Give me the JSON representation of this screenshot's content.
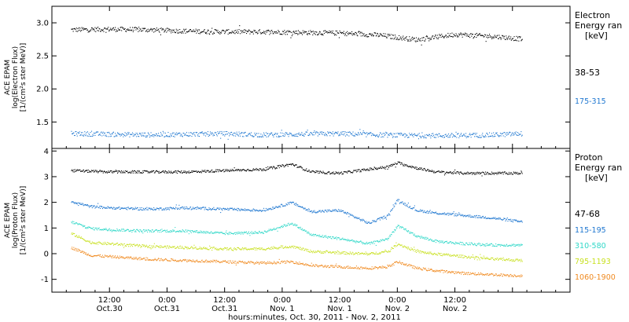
{
  "x_title": "hours:minutes, Oct. 30, 2011 - Nov. 2, 2011",
  "x_ticks": [
    {
      "t": "12:00",
      "d": "Oct.30"
    },
    {
      "t": "0:00",
      "d": "Oct.31"
    },
    {
      "t": "12:00",
      "d": "Oct.31"
    },
    {
      "t": "0:00",
      "d": "Nov. 1"
    },
    {
      "t": "12:00",
      "d": "Nov. 1"
    },
    {
      "t": "0:00",
      "d": "Nov. 2"
    },
    {
      "t": "12:00",
      "d": "Nov. 2"
    }
  ],
  "chart_data": [
    {
      "type": "scatter",
      "ylabel": [
        "ACE EPAM",
        "log(Electron Flux)",
        "[1/(cm²s ster MeV)]"
      ],
      "ylim": [
        1.1,
        3.25
      ],
      "yticks": [
        "1.5",
        "2.0",
        "2.5",
        "3.0"
      ],
      "ytick_values": [
        1.5,
        2.0,
        2.5,
        3.0
      ],
      "legend_title": [
        "Electron",
        "Energy ran",
        "[keV]"
      ],
      "series": [
        {
          "name": "38-53",
          "color": "#000000",
          "hours": [
            4,
            12,
            20,
            28,
            36,
            44,
            52,
            60,
            68,
            76,
            84,
            92,
            98
          ],
          "values": [
            2.9,
            2.91,
            2.9,
            2.88,
            2.87,
            2.87,
            2.86,
            2.85,
            2.82,
            2.75,
            2.83,
            2.8,
            2.76
          ]
        },
        {
          "name": "175-315",
          "color": "#1f77d0",
          "hours": [
            4,
            12,
            20,
            28,
            36,
            44,
            52,
            60,
            68,
            76,
            84,
            92,
            98
          ],
          "values": [
            1.33,
            1.32,
            1.31,
            1.32,
            1.33,
            1.31,
            1.32,
            1.33,
            1.31,
            1.3,
            1.3,
            1.31,
            1.33
          ]
        }
      ]
    },
    {
      "type": "scatter",
      "ylabel": [
        "ACE EPAM",
        "log(Proton Flux)",
        "[1/(cm²s ster MeV)]"
      ],
      "ylim": [
        -1.5,
        4.1
      ],
      "yticks": [
        "-1",
        "0",
        "1",
        "2",
        "3",
        "4"
      ],
      "ytick_values": [
        -1,
        0,
        1,
        2,
        3,
        4
      ],
      "legend_title": [
        "Proton",
        "Energy ran",
        "[keV]"
      ],
      "series": [
        {
          "name": "47-68",
          "color": "#000000",
          "hours": [
            4,
            12,
            20,
            28,
            36,
            44,
            50,
            54,
            60,
            66,
            70,
            72,
            76,
            80,
            86,
            92,
            98
          ],
          "values": [
            3.25,
            3.2,
            3.2,
            3.2,
            3.25,
            3.3,
            3.5,
            3.2,
            3.15,
            3.3,
            3.4,
            3.55,
            3.35,
            3.2,
            3.15,
            3.15,
            3.15
          ]
        },
        {
          "name": "115-195",
          "color": "#1f77d0",
          "hours": [
            4,
            8,
            12,
            20,
            28,
            36,
            44,
            50,
            54,
            60,
            66,
            70,
            72,
            76,
            80,
            86,
            92,
            98
          ],
          "values": [
            2.05,
            1.85,
            1.8,
            1.75,
            1.8,
            1.75,
            1.7,
            2.0,
            1.65,
            1.7,
            1.2,
            1.5,
            2.1,
            1.7,
            1.6,
            1.5,
            1.4,
            1.25
          ]
        },
        {
          "name": "310-580",
          "color": "#30d8c8",
          "hours": [
            4,
            8,
            12,
            20,
            28,
            36,
            44,
            50,
            54,
            60,
            66,
            70,
            72,
            76,
            80,
            86,
            92,
            98
          ],
          "values": [
            1.25,
            1.0,
            0.95,
            0.9,
            0.9,
            0.8,
            0.85,
            1.2,
            0.75,
            0.6,
            0.4,
            0.6,
            1.1,
            0.7,
            0.5,
            0.4,
            0.35,
            0.35
          ]
        },
        {
          "name": "795-1193",
          "color": "#c8e020",
          "hours": [
            4,
            8,
            12,
            20,
            28,
            36,
            44,
            50,
            54,
            60,
            66,
            70,
            72,
            76,
            80,
            86,
            92,
            98
          ],
          "values": [
            0.8,
            0.45,
            0.4,
            0.3,
            0.25,
            0.2,
            0.2,
            0.3,
            0.1,
            0.05,
            0.0,
            0.1,
            0.4,
            0.1,
            0.0,
            -0.1,
            -0.2,
            -0.25
          ]
        },
        {
          "name": "1060-1900",
          "color": "#f08a20",
          "hours": [
            4,
            8,
            12,
            20,
            28,
            36,
            44,
            50,
            54,
            60,
            66,
            70,
            72,
            76,
            80,
            86,
            92,
            98
          ],
          "values": [
            0.25,
            -0.05,
            -0.1,
            -0.2,
            -0.25,
            -0.3,
            -0.35,
            -0.3,
            -0.45,
            -0.5,
            -0.55,
            -0.5,
            -0.3,
            -0.55,
            -0.65,
            -0.75,
            -0.8,
            -0.85
          ]
        }
      ]
    }
  ]
}
